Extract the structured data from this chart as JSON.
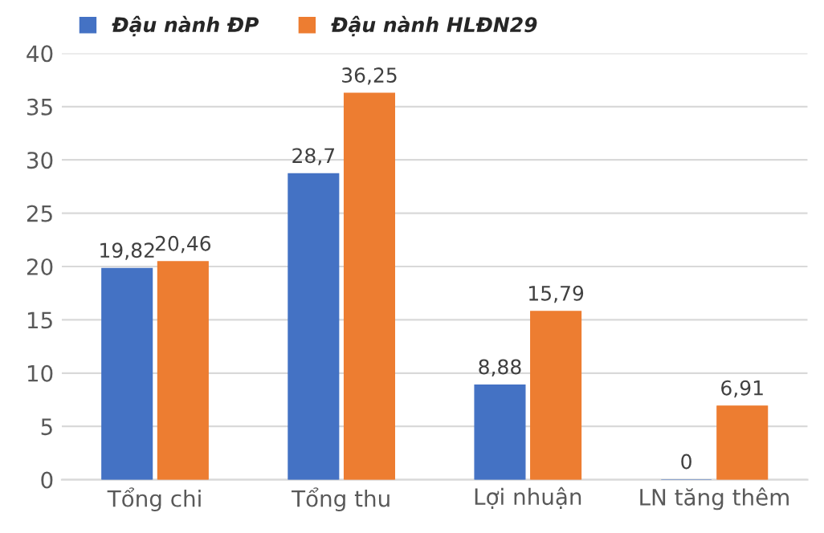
{
  "chart_data": {
    "type": "bar",
    "categories": [
      "Tổng chi",
      "Tổng thu",
      "Lợi nhuận",
      "LN tăng thêm"
    ],
    "series": [
      {
        "name": "Đậu nành ĐP",
        "color": "#4472c4",
        "values": [
          19.82,
          28.7,
          8.88,
          0
        ],
        "value_labels": [
          "19,82",
          "28,7",
          "8,88",
          "0"
        ]
      },
      {
        "name": "Đậu nành HLĐN29",
        "color": "#ed7d31",
        "values": [
          20.46,
          36.25,
          15.79,
          6.91
        ],
        "value_labels": [
          "20,46",
          "36,25",
          "15,79",
          "6,91"
        ]
      }
    ],
    "ylim": [
      0,
      40
    ],
    "yticks": [
      0,
      5,
      10,
      15,
      20,
      25,
      30,
      35,
      40
    ],
    "grid": "y",
    "legend": "top left"
  }
}
